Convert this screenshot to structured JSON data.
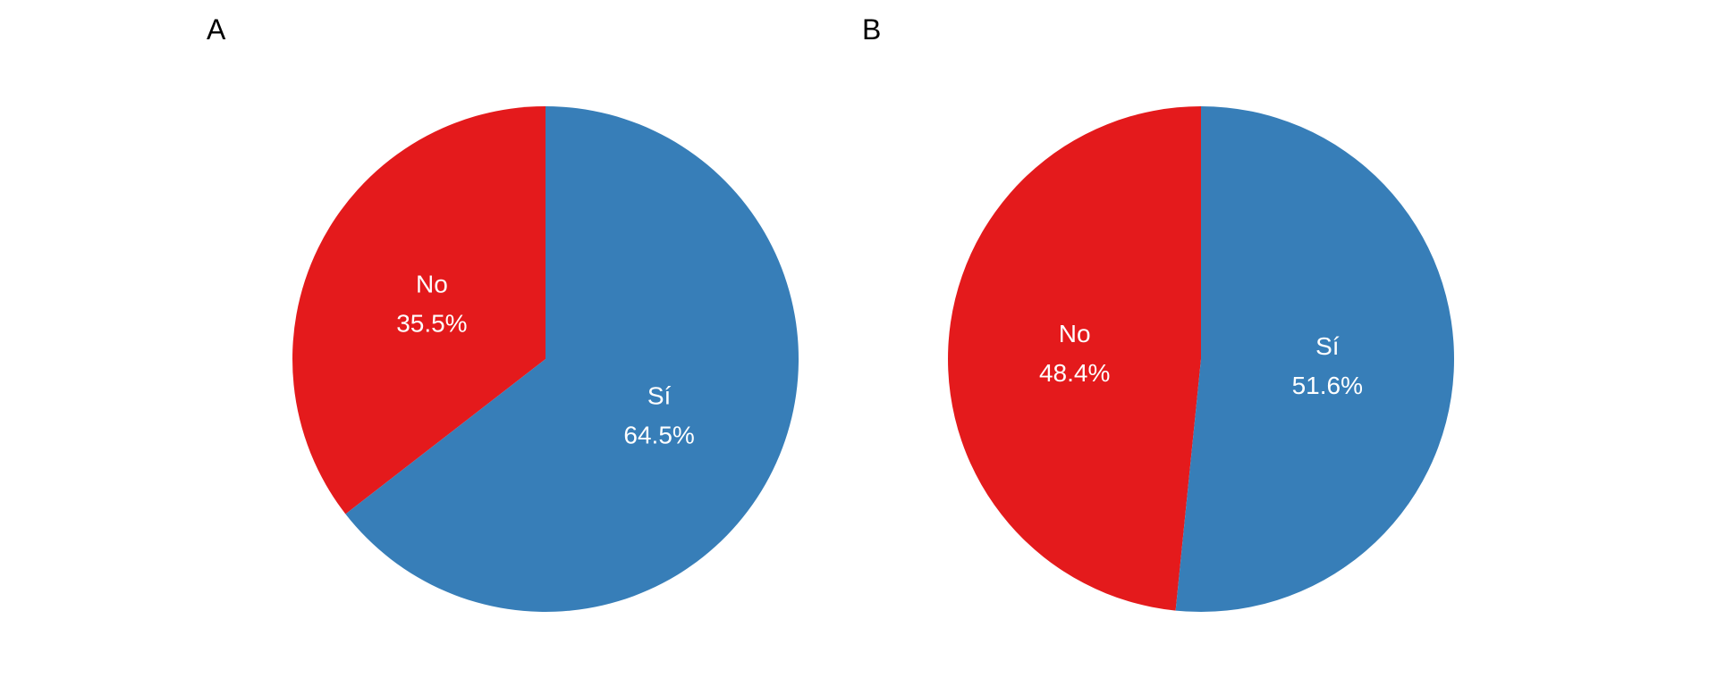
{
  "colors": {
    "no": "#e41a1c",
    "si": "#377eb8",
    "background": "#ffffff",
    "panel_tag": "#000000",
    "slice_text": "#ffffff"
  },
  "chart_data": [
    {
      "type": "pie",
      "panel": "A",
      "categories": [
        "No",
        "Sí"
      ],
      "values": [
        35.5,
        64.5
      ],
      "labels": [
        "35.5%",
        "64.5%"
      ],
      "colors": [
        "#e41a1c",
        "#377eb8"
      ],
      "start": "12 o'clock",
      "direction": "counterclockwise",
      "legend": "none"
    },
    {
      "type": "pie",
      "panel": "B",
      "categories": [
        "No",
        "Sí"
      ],
      "values": [
        48.4,
        51.6
      ],
      "labels": [
        "48.4%",
        "51.6%"
      ],
      "colors": [
        "#e41a1c",
        "#377eb8"
      ],
      "start": "12 o'clock",
      "direction": "counterclockwise",
      "legend": "none"
    }
  ]
}
